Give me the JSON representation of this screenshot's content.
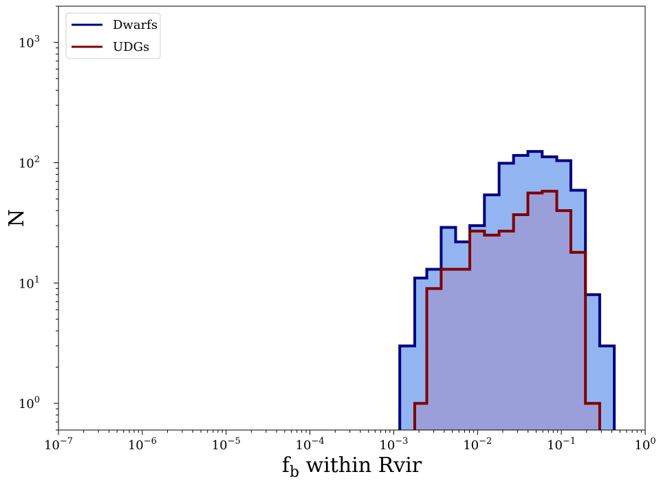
{
  "chart_data": {
    "type": "histogram",
    "xlabel_main": "f",
    "xlabel_sub": "b",
    "xlabel_rest": " within Rvir",
    "ylabel": "N",
    "xscale": "log",
    "yscale": "log",
    "xlim": [
      1e-07,
      1
    ],
    "ylim": [
      0.6,
      2000
    ],
    "x_ticks": [
      {
        "value": 1e-07,
        "base": "10",
        "exp": "−7"
      },
      {
        "value": 1e-06,
        "base": "10",
        "exp": "−6"
      },
      {
        "value": 1e-05,
        "base": "10",
        "exp": "−5"
      },
      {
        "value": 0.0001,
        "base": "10",
        "exp": "−4"
      },
      {
        "value": 0.001,
        "base": "10",
        "exp": "−3"
      },
      {
        "value": 0.01,
        "base": "10",
        "exp": "−2"
      },
      {
        "value": 0.1,
        "base": "10",
        "exp": "−1"
      },
      {
        "value": 1,
        "base": "10",
        "exp": "0"
      }
    ],
    "y_ticks": [
      {
        "value": 1,
        "base": "10",
        "exp": "0"
      },
      {
        "value": 10,
        "base": "10",
        "exp": "1"
      },
      {
        "value": 100,
        "base": "10",
        "exp": "2"
      },
      {
        "value": 1000,
        "base": "10",
        "exp": "3"
      }
    ],
    "legend_position": "top-left",
    "bin_edges": [
      0.00118,
      0.00178,
      0.00248,
      0.00368,
      0.00548,
      0.00808,
      0.01208,
      0.01808,
      0.02688,
      0.03988,
      0.05908,
      0.08818,
      0.1298,
      0.1938,
      0.2868,
      0.4278
    ],
    "series": [
      {
        "name": "Dwarfs",
        "edge_color": "#00007f",
        "fill_color": "#6495ed",
        "fill_opacity": 0.7,
        "counts": [
          3,
          11,
          13,
          29,
          22,
          30,
          54,
          99,
          115,
          124,
          112,
          104,
          59,
          8,
          3
        ]
      },
      {
        "name": "UDGs",
        "edge_color": "#7f0000",
        "fill_color": "#9b9bd5",
        "fill_opacity": 0.85,
        "counts": [
          0,
          1,
          9,
          13,
          13,
          27,
          25,
          27,
          37,
          56,
          58,
          40,
          18,
          1,
          0
        ]
      }
    ]
  }
}
